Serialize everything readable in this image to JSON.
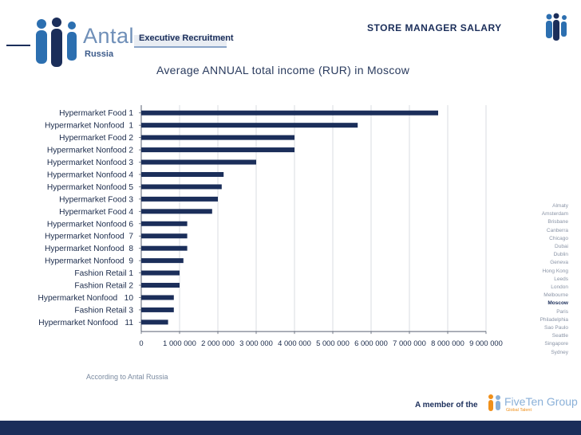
{
  "brand": {
    "name": "Antal",
    "region": "Russia",
    "tagline": "Executive Recruitment"
  },
  "header": {
    "title": "STORE MANAGER SALARY"
  },
  "subtitle": "Average ANNUAL total income (RUR) in Moscow",
  "chart_data": {
    "type": "bar",
    "orientation": "horizontal",
    "title": "Average ANNUAL total income (RUR) in Moscow",
    "categories": [
      "Hypermarket Food 1",
      "Hypermarket Nonfood  1",
      "Hypermarket Food 2",
      "Hypermarket Nonfood 2",
      "Hypermarket Nonfood 3",
      "Hypermarket Nonfood 4",
      "Hypermarket Nonfood 5",
      "Hypermarket Food 3",
      "Hypermarket Food 4",
      "Hypermarket Nonfood 6",
      "Hypermarket Nonfood  7",
      "Hypermarket Nonfood  8",
      "Hypermarket Nonfood  9",
      "Fashion Retail 1",
      "Fashion Retail 2",
      "Hypermarket Nonfood   10",
      "Fashion Retail 3",
      "Hypermarket Nonfood   11"
    ],
    "values": [
      7750000,
      5650000,
      4000000,
      4000000,
      3000000,
      2150000,
      2100000,
      2000000,
      1850000,
      1200000,
      1200000,
      1200000,
      1100000,
      1000000,
      1000000,
      850000,
      850000,
      700000
    ],
    "xlim": [
      0,
      9000000
    ],
    "xticks": [
      0,
      1000000,
      2000000,
      3000000,
      4000000,
      5000000,
      6000000,
      7000000,
      8000000,
      9000000
    ],
    "xtick_labels": [
      "0",
      "1 000 000",
      "2 000 000",
      "3 000 000",
      "4 000 000",
      "5 000 000",
      "6 000 000",
      "7 000 000",
      "8 000 000",
      "9 000 000"
    ],
    "xlabel": "",
    "ylabel": "",
    "grid": true,
    "bar_color": "#1b2e5a"
  },
  "source_note": "According to Antal Russia",
  "cities": [
    "Almaty",
    "Amsterdam",
    "Brisbane",
    "Canberra",
    "Chicago",
    "Dubai",
    "Dublin",
    "Geneva",
    "Hong Kong",
    "Leeds",
    "London",
    "Melbourne",
    "Moscow",
    "Paris",
    "Philadelphia",
    "Sao Paulo",
    "Seattle",
    "Singapore",
    "Sydney"
  ],
  "active_city": "Moscow",
  "footer": {
    "member_text": "A member of the",
    "group_name": "FiveTen Group",
    "group_sub": "Global Talent"
  }
}
